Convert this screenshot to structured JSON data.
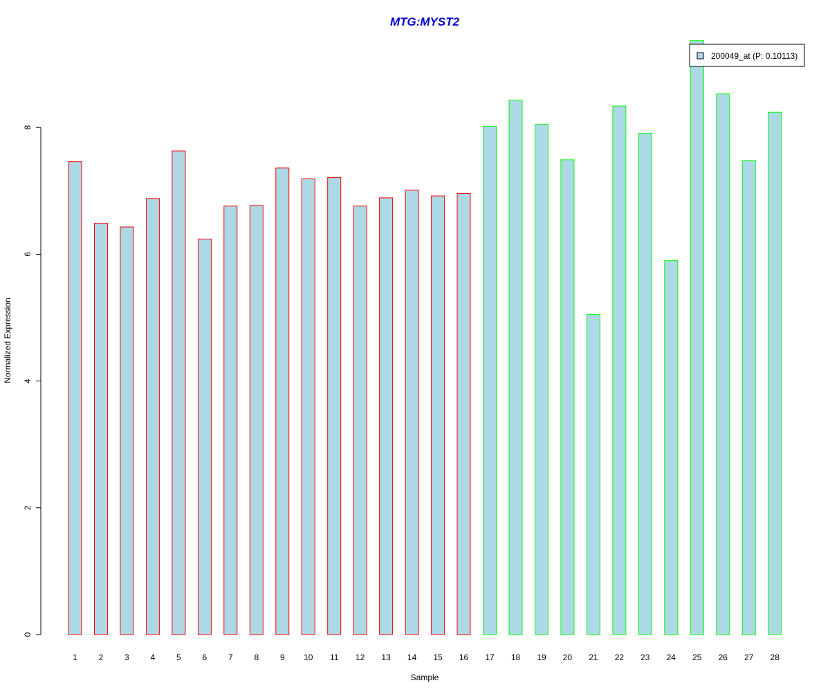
{
  "chart_data": {
    "type": "bar",
    "title": "MTG:MYST2",
    "xlabel": "Sample",
    "ylabel": "Normalized Expression",
    "ylim": [
      0,
      9.5
    ],
    "yticks": [
      "0",
      "2",
      "4",
      "6",
      "8"
    ],
    "categories": [
      "1",
      "2",
      "3",
      "4",
      "5",
      "6",
      "7",
      "8",
      "9",
      "10",
      "11",
      "12",
      "13",
      "14",
      "15",
      "16",
      "17",
      "18",
      "19",
      "20",
      "21",
      "22",
      "23",
      "24",
      "25",
      "26",
      "27",
      "28"
    ],
    "series": [
      {
        "name": "200049_at (P: 0.10113)",
        "values": [
          7.46,
          6.49,
          6.43,
          6.88,
          7.63,
          6.24,
          6.76,
          6.77,
          7.36,
          7.19,
          7.21,
          6.76,
          6.89,
          7.01,
          6.92,
          6.96,
          8.02,
          8.43,
          8.05,
          7.49,
          5.05,
          8.34,
          7.91,
          5.9,
          9.37,
          8.53,
          7.48,
          8.24
        ]
      }
    ],
    "group_labels": [
      "1",
      "1",
      "1",
      "1",
      "1",
      "1",
      "1",
      "1",
      "1",
      "1",
      "1",
      "1",
      "1",
      "1",
      "1",
      "1",
      "2",
      "2",
      "2",
      "2",
      "2",
      "2",
      "2",
      "2",
      "2",
      "2",
      "2",
      "2"
    ],
    "legend_position": "top-right",
    "grid": false
  },
  "colors": {
    "title": "#0000cd",
    "bar_fill": "#add8e6",
    "group_1_border": "#ff0000",
    "group_2_border": "#00ff00",
    "axis": "#000000"
  }
}
